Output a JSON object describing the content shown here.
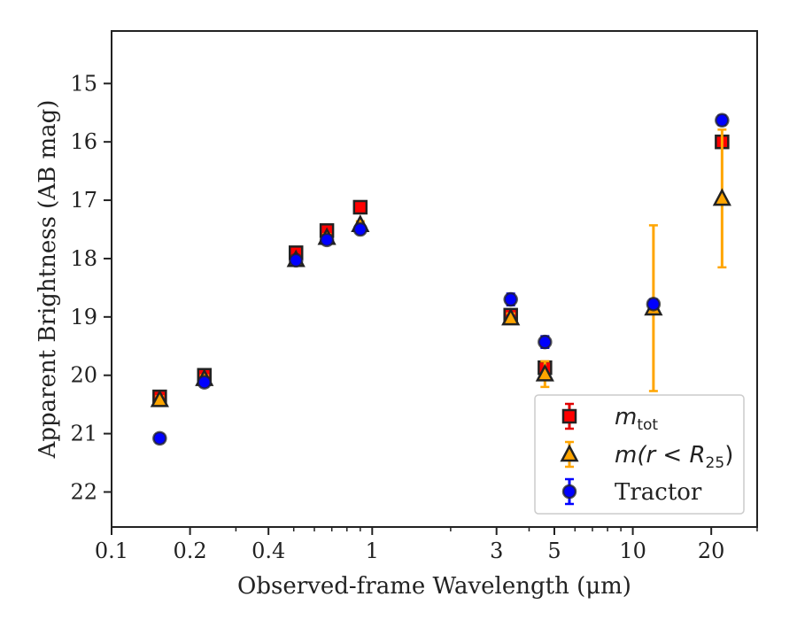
{
  "chart_data": {
    "type": "scatter",
    "xlabel": "Observed-frame Wavelength (μm)",
    "ylabel": "Apparent Brightness (AB mag)",
    "x_scale": "log",
    "xlim": [
      0.1,
      30
    ],
    "ylim": [
      22.6,
      14.1
    ],
    "y_inverted": true,
    "x_ticks": [
      {
        "value": 0.1,
        "label": "0.1"
      },
      {
        "value": 0.2,
        "label": "0.2"
      },
      {
        "value": 0.4,
        "label": "0.4"
      },
      {
        "value": 1,
        "label": "1"
      },
      {
        "value": 3,
        "label": "3"
      },
      {
        "value": 5,
        "label": "5"
      },
      {
        "value": 10,
        "label": "10"
      },
      {
        "value": 20,
        "label": "20"
      }
    ],
    "x_minor_ticks": [
      0.3,
      0.5,
      0.6,
      0.7,
      0.8,
      0.9,
      2,
      4,
      6,
      7,
      8,
      9,
      30
    ],
    "y_ticks": [
      15,
      16,
      17,
      18,
      19,
      20,
      21,
      22
    ],
    "grid": false,
    "legend_position": "bottom-right",
    "series": [
      {
        "name_main": "m",
        "name_sub": "tot",
        "marker": "square",
        "color": "#ff0000",
        "errorbar_color": "#e00000",
        "points": [
          {
            "x": 0.153,
            "y": 20.37,
            "err": 0.07
          },
          {
            "x": 0.227,
            "y": 20.0,
            "err": 0.07
          },
          {
            "x": 0.51,
            "y": 17.9,
            "err": 0.08
          },
          {
            "x": 0.67,
            "y": 17.52,
            "err": 0.08
          },
          {
            "x": 0.9,
            "y": 17.12,
            "err": 0.06
          },
          {
            "x": 3.4,
            "y": 18.97,
            "err": 0.08
          },
          {
            "x": 4.6,
            "y": 19.87,
            "err": 0.1
          },
          {
            "x": 22.0,
            "y": 16.0,
            "err": 0.08
          }
        ]
      },
      {
        "name_main": "m(r < R",
        "name_sub": "25",
        "name_end": ")",
        "marker": "triangle",
        "color": "#ffa500",
        "errorbar_color": "#ffa500",
        "points": [
          {
            "x": 0.153,
            "y": 20.42,
            "err": 0.06
          },
          {
            "x": 0.227,
            "y": 20.06,
            "err": 0.06
          },
          {
            "x": 0.51,
            "y": 18.02,
            "err": 0.06
          },
          {
            "x": 0.67,
            "y": 17.64,
            "err": 0.06
          },
          {
            "x": 0.9,
            "y": 17.42,
            "err": 0.06
          },
          {
            "x": 3.4,
            "y": 19.02,
            "err": 0.08
          },
          {
            "x": 4.6,
            "y": 19.98,
            "err": 0.22
          },
          {
            "x": 12.0,
            "y": 18.85,
            "err": 1.42
          },
          {
            "x": 22.0,
            "y": 16.97,
            "err": 1.18
          }
        ]
      },
      {
        "name": "Tractor",
        "marker": "circle",
        "color": "#0000ff",
        "errorbar_color": "#0000ff",
        "points": [
          {
            "x": 0.153,
            "y": 21.08,
            "err": 0.07
          },
          {
            "x": 0.227,
            "y": 20.12,
            "err": 0.07
          },
          {
            "x": 0.51,
            "y": 18.03,
            "err": 0.06
          },
          {
            "x": 0.67,
            "y": 17.68,
            "err": 0.06
          },
          {
            "x": 0.9,
            "y": 17.5,
            "err": 0.06
          },
          {
            "x": 3.4,
            "y": 18.7,
            "err": 0.1
          },
          {
            "x": 4.6,
            "y": 19.43,
            "err": 0.1
          },
          {
            "x": 12.0,
            "y": 18.78,
            "err": 0.08
          },
          {
            "x": 22.0,
            "y": 15.63,
            "err": 0.08
          }
        ]
      }
    ]
  }
}
